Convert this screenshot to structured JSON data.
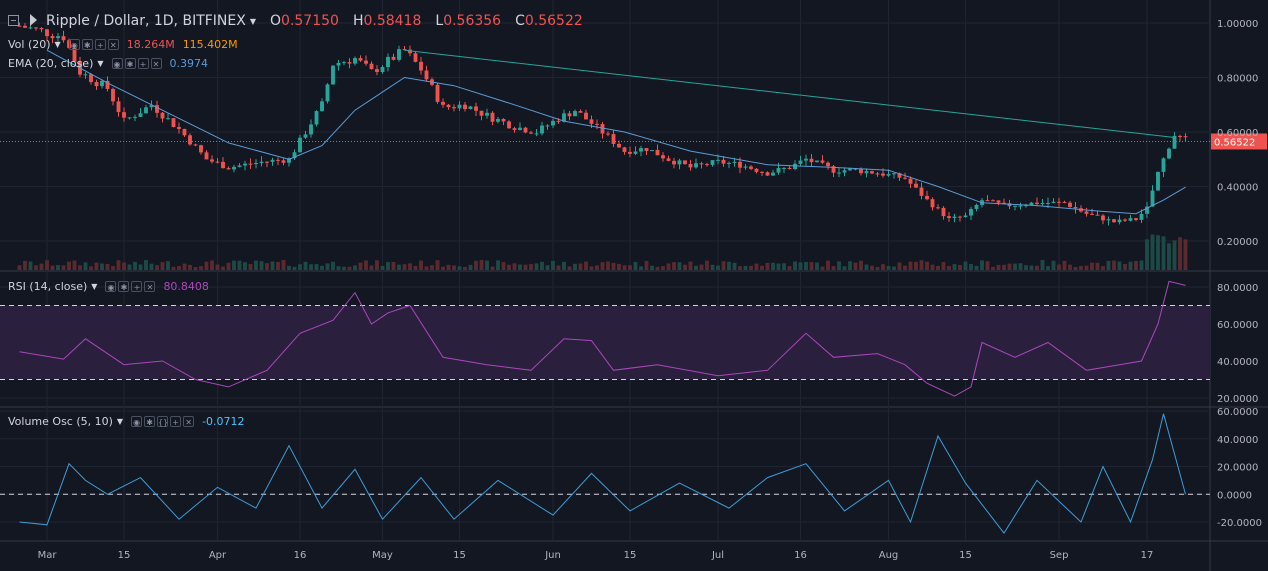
{
  "header": {
    "title": "Ripple / Dollar, 1D, BITFINEX",
    "ohlc": [
      {
        "k": "O",
        "v": "0.57150"
      },
      {
        "k": "H",
        "v": "0.58418"
      },
      {
        "k": "L",
        "v": "0.56356"
      },
      {
        "k": "C",
        "v": "0.56522"
      }
    ]
  },
  "indicators": {
    "vol": {
      "label": "Vol (20)",
      "v1": "18.264M",
      "v2": "115.402M"
    },
    "ema": {
      "label": "EMA (20, close)",
      "value": "0.3974"
    },
    "rsi": {
      "label": "RSI (14, close)",
      "value": "80.8408"
    },
    "vosc": {
      "label": "Volume Osc (5, 10)",
      "value": "-0.0712"
    }
  },
  "colors": {
    "background": "#131722",
    "up": "#26a69a",
    "down": "#ef5350",
    "ema": "#5b9bd5",
    "trendline": "#26a69a",
    "rsi": "#ab47bc",
    "rsi_band": "#2a1f3d",
    "vosc": "#3e9dd6",
    "vol_value": "#ef5350",
    "vol_ma": "#ff9800",
    "ema_value": "#5b9bd5",
    "rsi_value": "#ab47bc",
    "vosc_value": "#4fc3f7"
  },
  "chart_data": {
    "type": "candlestick",
    "last_price_label": "0.56522",
    "x_ticks": [
      {
        "label": "Mar",
        "x": "Mar 1"
      },
      {
        "label": "15",
        "x": "Mar 15"
      },
      {
        "label": "Apr",
        "x": "Apr 1"
      },
      {
        "label": "16",
        "x": "Apr 16"
      },
      {
        "label": "May",
        "x": "May 1"
      },
      {
        "label": "15",
        "x": "May 15"
      },
      {
        "label": "Jun",
        "x": "Jun 1"
      },
      {
        "label": "15",
        "x": "Jun 15"
      },
      {
        "label": "Jul",
        "x": "Jul 1"
      },
      {
        "label": "16",
        "x": "Jul 16"
      },
      {
        "label": "Aug",
        "x": "Aug 1"
      },
      {
        "label": "15",
        "x": "Aug 15"
      },
      {
        "label": "Sep",
        "x": "Sep 1"
      },
      {
        "label": "17",
        "x": "Sep 17"
      }
    ],
    "price_axis": {
      "ticks": [
        "1.00000",
        "0.80000",
        "0.60000",
        "0.40000",
        "0.20000"
      ]
    },
    "price_line": [
      {
        "x": "Feb 24",
        "y": 0.99
      },
      {
        "x": "Mar 4",
        "y": 0.95
      },
      {
        "x": "Mar 7",
        "y": 0.82
      },
      {
        "x": "Mar 12",
        "y": 0.76
      },
      {
        "x": "Mar 15",
        "y": 0.64
      },
      {
        "x": "Mar 20",
        "y": 0.7
      },
      {
        "x": "Mar 25",
        "y": 0.61
      },
      {
        "x": "Mar 30",
        "y": 0.5
      },
      {
        "x": "Apr 3",
        "y": 0.47
      },
      {
        "x": "Apr 9",
        "y": 0.49
      },
      {
        "x": "Apr 14",
        "y": 0.5
      },
      {
        "x": "Apr 17",
        "y": 0.6
      },
      {
        "x": "Apr 20",
        "y": 0.7
      },
      {
        "x": "Apr 22",
        "y": 0.85
      },
      {
        "x": "Apr 26",
        "y": 0.87
      },
      {
        "x": "Apr 29",
        "y": 0.82
      },
      {
        "x": "May 2",
        "y": 0.86
      },
      {
        "x": "May 5",
        "y": 0.9
      },
      {
        "x": "May 8",
        "y": 0.83
      },
      {
        "x": "May 12",
        "y": 0.69
      },
      {
        "x": "May 16",
        "y": 0.7
      },
      {
        "x": "May 20",
        "y": 0.66
      },
      {
        "x": "May 25",
        "y": 0.62
      },
      {
        "x": "May 29",
        "y": 0.6
      },
      {
        "x": "Jun 2",
        "y": 0.65
      },
      {
        "x": "Jun 5",
        "y": 0.68
      },
      {
        "x": "Jun 10",
        "y": 0.6
      },
      {
        "x": "Jun 14",
        "y": 0.53
      },
      {
        "x": "Jun 18",
        "y": 0.54
      },
      {
        "x": "Jun 22",
        "y": 0.5
      },
      {
        "x": "Jun 26",
        "y": 0.47
      },
      {
        "x": "Jul 1",
        "y": 0.49
      },
      {
        "x": "Jul 5",
        "y": 0.48
      },
      {
        "x": "Jul 10",
        "y": 0.45
      },
      {
        "x": "Jul 14",
        "y": 0.47
      },
      {
        "x": "Jul 17",
        "y": 0.5
      },
      {
        "x": "Jul 22",
        "y": 0.46
      },
      {
        "x": "Jul 26",
        "y": 0.46
      },
      {
        "x": "Jul 30",
        "y": 0.45
      },
      {
        "x": "Aug 4",
        "y": 0.43
      },
      {
        "x": "Aug 8",
        "y": 0.35
      },
      {
        "x": "Aug 12",
        "y": 0.28
      },
      {
        "x": "Aug 15",
        "y": 0.29
      },
      {
        "x": "Aug 18",
        "y": 0.35
      },
      {
        "x": "Aug 22",
        "y": 0.33
      },
      {
        "x": "Aug 28",
        "y": 0.34
      },
      {
        "x": "Sep 2",
        "y": 0.34
      },
      {
        "x": "Sep 6",
        "y": 0.3
      },
      {
        "x": "Sep 11",
        "y": 0.27
      },
      {
        "x": "Sep 15",
        "y": 0.28
      },
      {
        "x": "Sep 17",
        "y": 0.32
      },
      {
        "x": "Sep 19",
        "y": 0.45
      },
      {
        "x": "Sep 21",
        "y": 0.55
      },
      {
        "x": "Sep 22",
        "y": 0.59
      },
      {
        "x": "Sep 24",
        "y": 0.57
      }
    ],
    "ema_line": [
      {
        "x": "Mar 1",
        "y": 0.9
      },
      {
        "x": "Mar 12",
        "y": 0.78
      },
      {
        "x": "Mar 25",
        "y": 0.65
      },
      {
        "x": "Apr 3",
        "y": 0.56
      },
      {
        "x": "Apr 14",
        "y": 0.5
      },
      {
        "x": "Apr 20",
        "y": 0.55
      },
      {
        "x": "Apr 26",
        "y": 0.68
      },
      {
        "x": "May 5",
        "y": 0.8
      },
      {
        "x": "May 14",
        "y": 0.77
      },
      {
        "x": "May 25",
        "y": 0.7
      },
      {
        "x": "Jun 3",
        "y": 0.64
      },
      {
        "x": "Jun 14",
        "y": 0.6
      },
      {
        "x": "Jun 26",
        "y": 0.53
      },
      {
        "x": "Jul 10",
        "y": 0.48
      },
      {
        "x": "Jul 22",
        "y": 0.47
      },
      {
        "x": "Aug 1",
        "y": 0.46
      },
      {
        "x": "Aug 10",
        "y": 0.4
      },
      {
        "x": "Aug 18",
        "y": 0.34
      },
      {
        "x": "Aug 28",
        "y": 0.33
      },
      {
        "x": "Sep 8",
        "y": 0.31
      },
      {
        "x": "Sep 15",
        "y": 0.3
      },
      {
        "x": "Sep 20",
        "y": 0.35
      },
      {
        "x": "Sep 24",
        "y": 0.3974
      }
    ],
    "trendline": [
      {
        "x": "May 5",
        "y": 0.9
      },
      {
        "x": "Sep 22",
        "y": 0.58
      }
    ],
    "rsi": {
      "axis_ticks": [
        "80.0000",
        "60.0000",
        "40.0000",
        "20.0000"
      ],
      "upper_band": 70,
      "lower_band": 30,
      "values": [
        {
          "x": "Feb 24",
          "y": 45
        },
        {
          "x": "Mar 4",
          "y": 41
        },
        {
          "x": "Mar 8",
          "y": 52
        },
        {
          "x": "Mar 15",
          "y": 38
        },
        {
          "x": "Mar 22",
          "y": 40
        },
        {
          "x": "Mar 28",
          "y": 30
        },
        {
          "x": "Apr 3",
          "y": 26
        },
        {
          "x": "Apr 10",
          "y": 35
        },
        {
          "x": "Apr 16",
          "y": 55
        },
        {
          "x": "Apr 22",
          "y": 62
        },
        {
          "x": "Apr 26",
          "y": 77
        },
        {
          "x": "Apr 29",
          "y": 60
        },
        {
          "x": "May 2",
          "y": 66
        },
        {
          "x": "May 6",
          "y": 70
        },
        {
          "x": "May 12",
          "y": 42
        },
        {
          "x": "May 20",
          "y": 38
        },
        {
          "x": "May 28",
          "y": 35
        },
        {
          "x": "Jun 3",
          "y": 52
        },
        {
          "x": "Jun 8",
          "y": 51
        },
        {
          "x": "Jun 12",
          "y": 35
        },
        {
          "x": "Jun 20",
          "y": 38
        },
        {
          "x": "Jul 1",
          "y": 32
        },
        {
          "x": "Jul 10",
          "y": 35
        },
        {
          "x": "Jul 17",
          "y": 55
        },
        {
          "x": "Jul 22",
          "y": 42
        },
        {
          "x": "Jul 30",
          "y": 44
        },
        {
          "x": "Aug 4",
          "y": 38
        },
        {
          "x": "Aug 8",
          "y": 28
        },
        {
          "x": "Aug 13",
          "y": 21
        },
        {
          "x": "Aug 16",
          "y": 26
        },
        {
          "x": "Aug 18",
          "y": 50
        },
        {
          "x": "Aug 24",
          "y": 42
        },
        {
          "x": "Aug 30",
          "y": 50
        },
        {
          "x": "Sep 6",
          "y": 35
        },
        {
          "x": "Sep 12",
          "y": 38
        },
        {
          "x": "Sep 16",
          "y": 40
        },
        {
          "x": "Sep 19",
          "y": 60
        },
        {
          "x": "Sep 21",
          "y": 83
        },
        {
          "x": "Sep 24",
          "y": 80.84
        }
      ]
    },
    "volume_osc": {
      "axis_ticks": [
        "60.0000",
        "40.0000",
        "20.0000",
        "0.0000",
        "-20.0000"
      ],
      "values": [
        {
          "x": "Feb 24",
          "y": -20
        },
        {
          "x": "Mar 1",
          "y": -22
        },
        {
          "x": "Mar 5",
          "y": 22
        },
        {
          "x": "Mar 8",
          "y": 10
        },
        {
          "x": "Mar 12",
          "y": 0
        },
        {
          "x": "Mar 18",
          "y": 12
        },
        {
          "x": "Mar 25",
          "y": -18
        },
        {
          "x": "Apr 1",
          "y": 5
        },
        {
          "x": "Apr 8",
          "y": -10
        },
        {
          "x": "Apr 14",
          "y": 35
        },
        {
          "x": "Apr 20",
          "y": -10
        },
        {
          "x": "Apr 26",
          "y": 18
        },
        {
          "x": "May 1",
          "y": -18
        },
        {
          "x": "May 8",
          "y": 12
        },
        {
          "x": "May 14",
          "y": -18
        },
        {
          "x": "May 22",
          "y": 10
        },
        {
          "x": "Jun 1",
          "y": -15
        },
        {
          "x": "Jun 8",
          "y": 15
        },
        {
          "x": "Jun 15",
          "y": -12
        },
        {
          "x": "Jun 24",
          "y": 8
        },
        {
          "x": "Jul 3",
          "y": -10
        },
        {
          "x": "Jul 10",
          "y": 12
        },
        {
          "x": "Jul 17",
          "y": 22
        },
        {
          "x": "Jul 24",
          "y": -12
        },
        {
          "x": "Aug 1",
          "y": 10
        },
        {
          "x": "Aug 5",
          "y": -20
        },
        {
          "x": "Aug 10",
          "y": 42
        },
        {
          "x": "Aug 15",
          "y": 8
        },
        {
          "x": "Aug 22",
          "y": -28
        },
        {
          "x": "Aug 28",
          "y": 10
        },
        {
          "x": "Sep 5",
          "y": -20
        },
        {
          "x": "Sep 9",
          "y": 20
        },
        {
          "x": "Sep 14",
          "y": -20
        },
        {
          "x": "Sep 18",
          "y": 25
        },
        {
          "x": "Sep 20",
          "y": 58
        },
        {
          "x": "Sep 24",
          "y": -0.0712
        }
      ]
    }
  }
}
